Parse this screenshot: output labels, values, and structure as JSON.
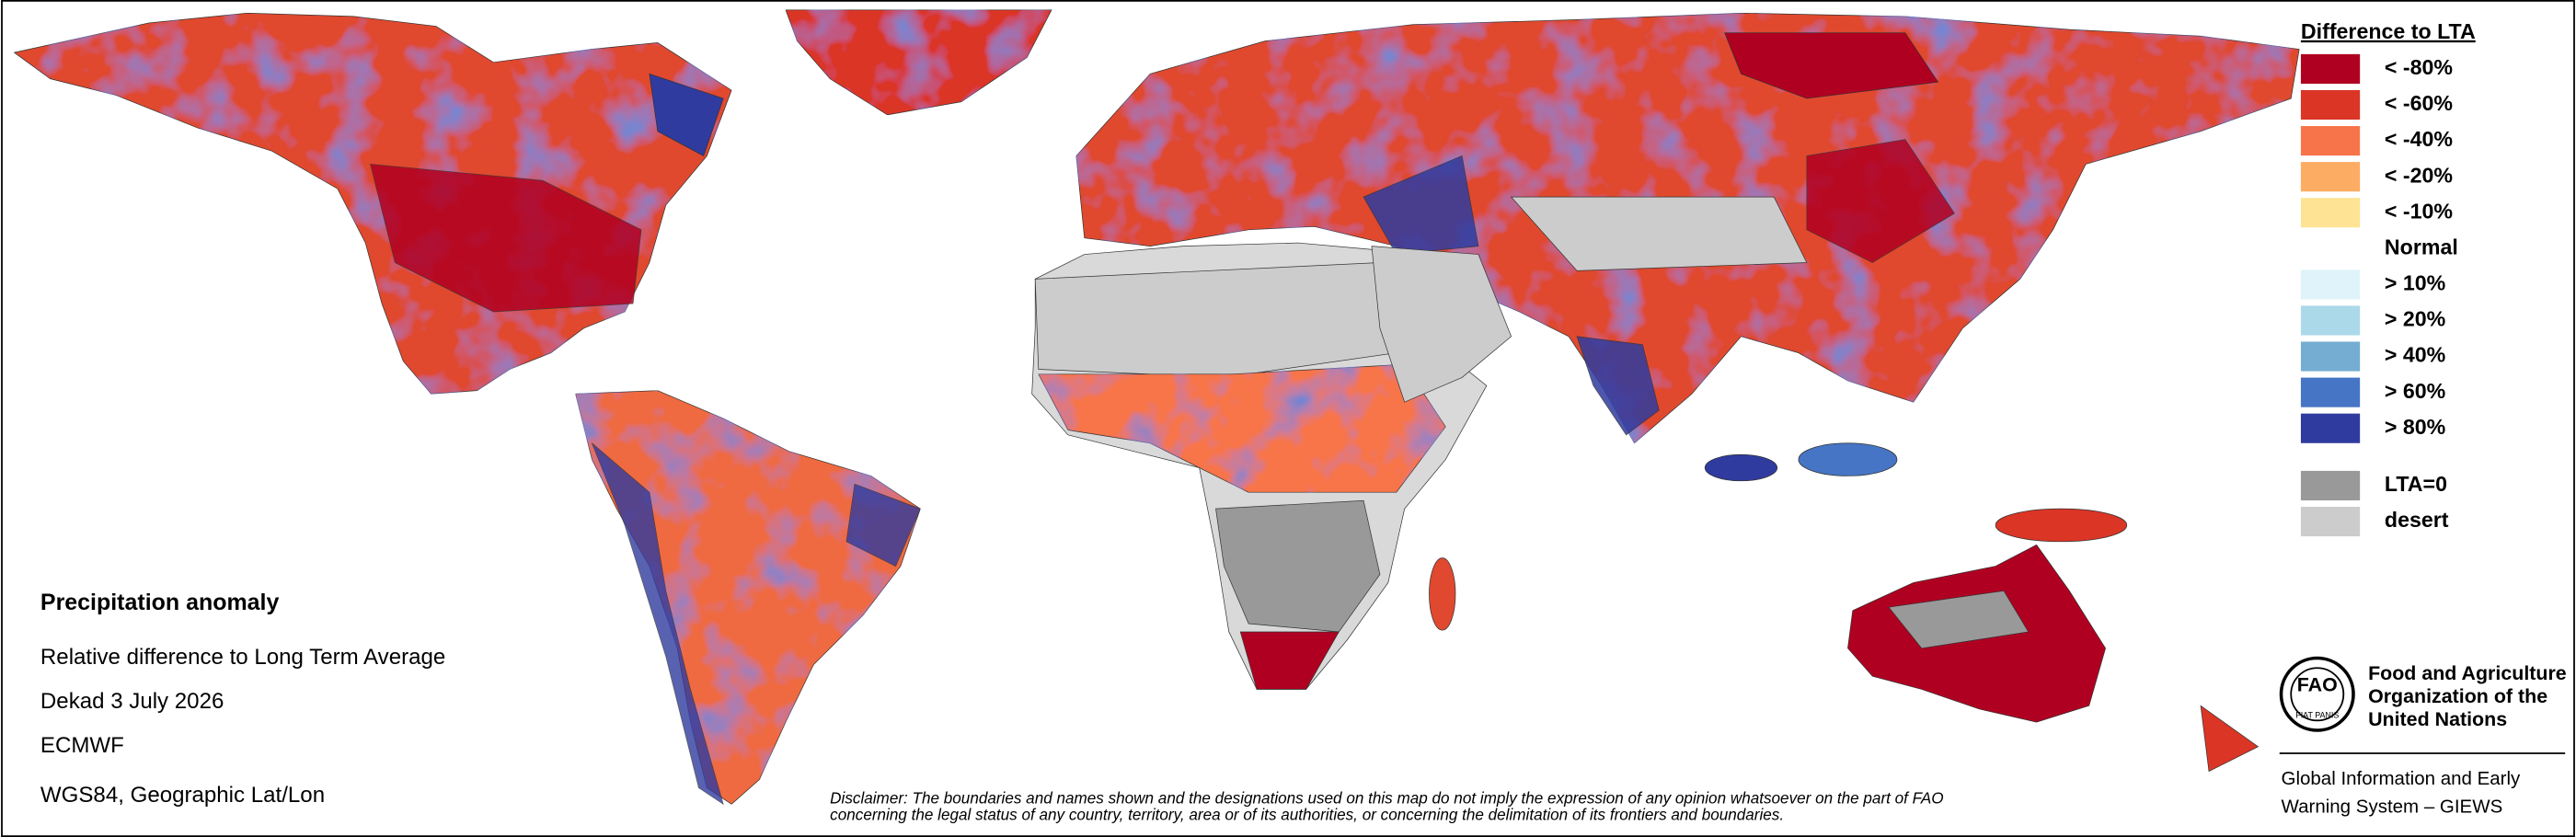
{
  "legend": {
    "title": "Difference to LTA",
    "items": [
      {
        "label": "< -80%",
        "color": "#b00021"
      },
      {
        "label": "< -60%",
        "color": "#db3526"
      },
      {
        "label": "< -40%",
        "color": "#f7744a"
      },
      {
        "label": "< -20%",
        "color": "#fcac63"
      },
      {
        "label": "< -10%",
        "color": "#fee394"
      },
      {
        "label": "Normal"
      },
      {
        "label": "> 10%",
        "color": "#e0f3fa"
      },
      {
        "label": "> 20%",
        "color": "#abd9e9"
      },
      {
        "label": "> 40%",
        "color": "#74add1"
      },
      {
        "label": "> 60%",
        "color": "#4575c4"
      },
      {
        "label": "> 80%",
        "color": "#2f3b9e"
      },
      {
        "label": "LTA=0",
        "color": "#999999"
      },
      {
        "label": "desert",
        "color": "#cccccc"
      }
    ]
  },
  "info": {
    "title": "Precipitation anomaly",
    "lines": [
      "Relative difference to Long Term Average",
      "Dekad 3 July 2026",
      "ECMWF",
      "WGS84, Geographic Lat/Lon"
    ]
  },
  "disclaimer": [
    "Disclaimer: The boundaries and names shown and the designations used on this map do not imply the expression of any opinion whatsoever on the part of FAO",
    "concerning the legal status of any country, territory, area or of its authorities, or concerning the delimitation of its frontiers and boundaries."
  ],
  "logo": {
    "emblem": "FAO",
    "motto": "FIAT PANIS",
    "name": [
      "Food and Agriculture",
      "Organization of the",
      "United Nations"
    ],
    "giews": [
      "Global Information and Early",
      "Warning System – GIEWS"
    ]
  }
}
